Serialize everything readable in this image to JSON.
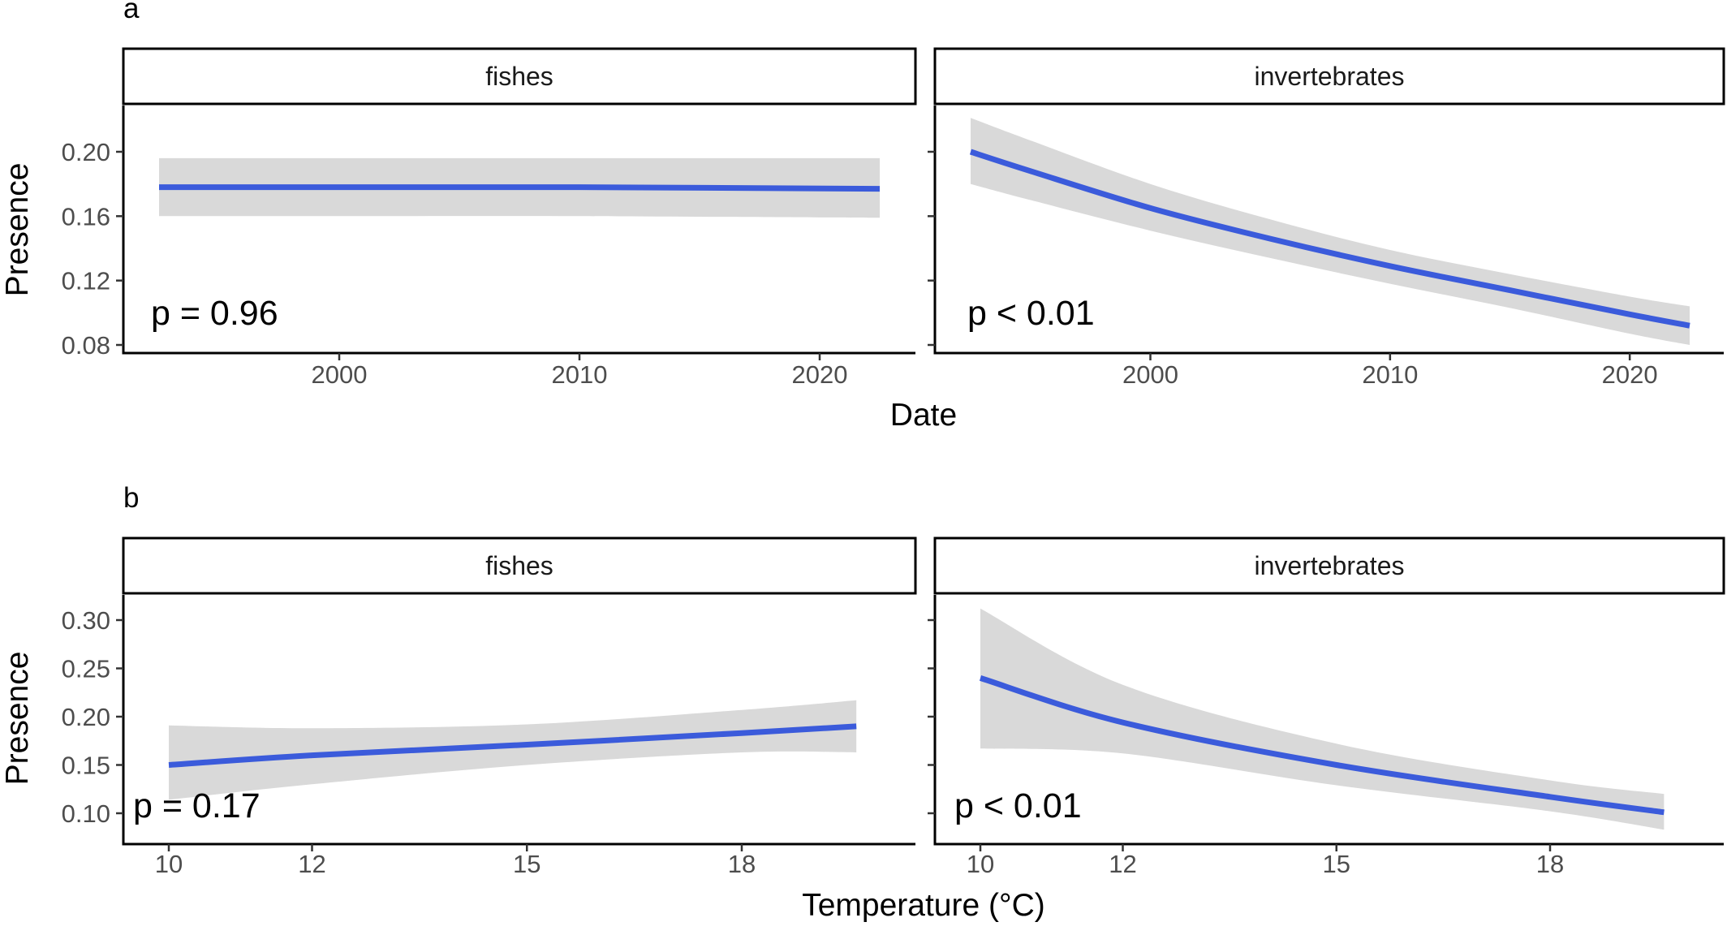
{
  "chart_data": [
    {
      "panel": "a",
      "type": "line",
      "xlabel": "Date",
      "ylabel": "Presence",
      "ylim": [
        0.075,
        0.225
      ],
      "yticks": [
        0.08,
        0.12,
        0.16,
        0.2
      ],
      "ytick_labels": [
        "0.08",
        "0.12",
        "0.16",
        "0.20"
      ],
      "xticks": [
        2000,
        2010,
        2020
      ],
      "xtick_labels": [
        "2000",
        "2010",
        "2020"
      ],
      "xlim": [
        1990.9,
        2023.9
      ],
      "grid": false,
      "line_color": "#3b5bdb",
      "band_color": "#d9d9d9",
      "facets": [
        {
          "strip": "fishes",
          "p_label": "p =  0.96",
          "series": [
            {
              "x": [
                1992.5,
                2000,
                2010,
                2022.5
              ],
              "fit": [
                0.178,
                0.178,
                0.178,
                0.177
              ],
              "lower": [
                0.16,
                0.16,
                0.16,
                0.159
              ],
              "upper": [
                0.196,
                0.196,
                0.196,
                0.196
              ]
            }
          ]
        },
        {
          "strip": "invertebrates",
          "p_label": "p < 0.01",
          "series": [
            {
              "x": [
                1992.5,
                1995,
                2000,
                2005,
                2010,
                2015,
                2020,
                2022.5
              ],
              "fit": [
                0.2,
                0.188,
                0.165,
                0.146,
                0.129,
                0.114,
                0.099,
                0.092
              ],
              "lower": [
                0.18,
                0.17,
                0.151,
                0.134,
                0.118,
                0.103,
                0.087,
                0.08
              ],
              "upper": [
                0.221,
                0.207,
                0.18,
                0.158,
                0.139,
                0.124,
                0.11,
                0.104
              ]
            }
          ]
        }
      ]
    },
    {
      "panel": "b",
      "type": "line",
      "xlabel": "Temperature (°C)",
      "ylabel": "Presence",
      "ylim": [
        0.08,
        0.32
      ],
      "yticks": [
        0.1,
        0.15,
        0.2,
        0.25,
        0.3
      ],
      "ytick_labels": [
        "0.10",
        "0.15",
        "0.20",
        "0.25",
        "0.30"
      ],
      "xticks": [
        10,
        12,
        15,
        18
      ],
      "xtick_labels": [
        "10",
        "12",
        "15",
        "18"
      ],
      "grid": false,
      "line_color": "#3b5bdb",
      "band_color": "#d9d9d9",
      "facets": [
        {
          "strip": "fishes",
          "p_label": "p =  0.17",
          "series": [
            {
              "x": [
                10,
                12,
                15,
                18,
                19.6
              ],
              "fit": [
                0.15,
                0.16,
                0.171,
                0.183,
                0.19
              ],
              "lower": [
                0.114,
                0.13,
                0.15,
                0.163,
                0.163
              ],
              "upper": [
                0.191,
                0.188,
                0.192,
                0.207,
                0.217
              ]
            }
          ]
        },
        {
          "strip": "invertebrates",
          "p_label": "p < 0.01",
          "series": [
            {
              "x": [
                10,
                12,
                15,
                18,
                19.6
              ],
              "fit": [
                0.24,
                0.194,
                0.15,
                0.117,
                0.101
              ],
              "lower": [
                0.167,
                0.162,
                0.129,
                0.102,
                0.083
              ],
              "upper": [
                0.312,
                0.233,
                0.172,
                0.134,
                0.12
              ]
            }
          ]
        }
      ]
    }
  ]
}
